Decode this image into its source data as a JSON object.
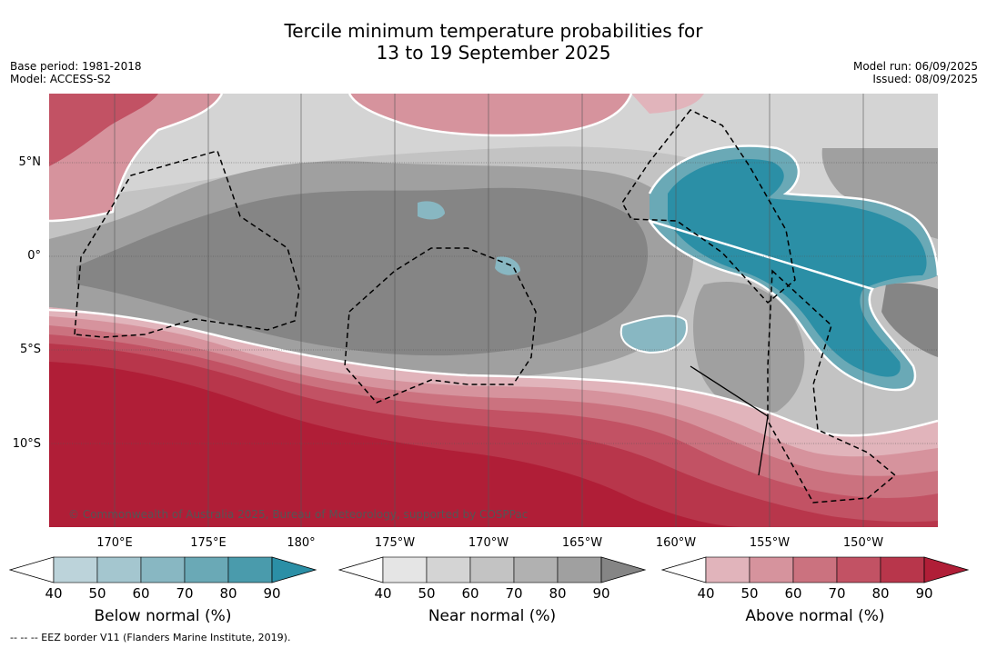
{
  "title_line1": "Tercile minimum temperature probabilities for",
  "title_line2": "13 to 19 September 2025",
  "meta_left": {
    "base_period": "Base period: 1981-2018",
    "model": "Model: ACCESS-S2"
  },
  "meta_right": {
    "model_run": "Model run: 06/09/2025",
    "issued": "Issued: 08/09/2025"
  },
  "lat_labels": [
    "5°N",
    "0°",
    "5°S",
    "10°S"
  ],
  "lon_labels": [
    "170°E",
    "175°E",
    "180°",
    "175°W",
    "170°W",
    "165°W",
    "160°W",
    "155°W",
    "150°W"
  ],
  "copyright": "© Commonwealth of Australia 2025, Bureau of Meteorology, supported by COSPPac",
  "colorbars": [
    {
      "title": "Below normal (%)",
      "ticks": [
        "40",
        "50",
        "60",
        "70",
        "80",
        "90"
      ],
      "colors": [
        "#ffffff",
        "#bcd3da",
        "#a4c6cf",
        "#88b7c2",
        "#6aa9b6",
        "#4a9bac",
        "#2b8fa6"
      ]
    },
    {
      "title": "Near normal (%)",
      "ticks": [
        "40",
        "50",
        "60",
        "70",
        "80",
        "90"
      ],
      "colors": [
        "#ffffff",
        "#e5e5e5",
        "#d4d4d4",
        "#c3c3c3",
        "#b1b1b1",
        "#a0a0a0",
        "#858585"
      ]
    },
    {
      "title": "Above normal (%)",
      "ticks": [
        "40",
        "50",
        "60",
        "70",
        "80",
        "90"
      ],
      "colors": [
        "#ffffff",
        "#e1b4bb",
        "#d6939d",
        "#cb727f",
        "#c25264",
        "#b8364b",
        "#b01e37"
      ]
    }
  ],
  "footnote": "--  --  -- EEZ border V11 (Flanders Marine Institute, 2019).",
  "legend_colors": {
    "below_dark": "#2b8fa6",
    "below_mid": "#6aa9b6",
    "below_light": "#a4c6cf",
    "near_dark": "#858585",
    "near_mid": "#a0a0a0",
    "near_light": "#c3c3c3",
    "near_pale": "#d4d4d4",
    "above_dark": "#b01e37",
    "above_mid": "#c25264",
    "above_light": "#d6939d",
    "above_pale": "#e1b4bb"
  }
}
